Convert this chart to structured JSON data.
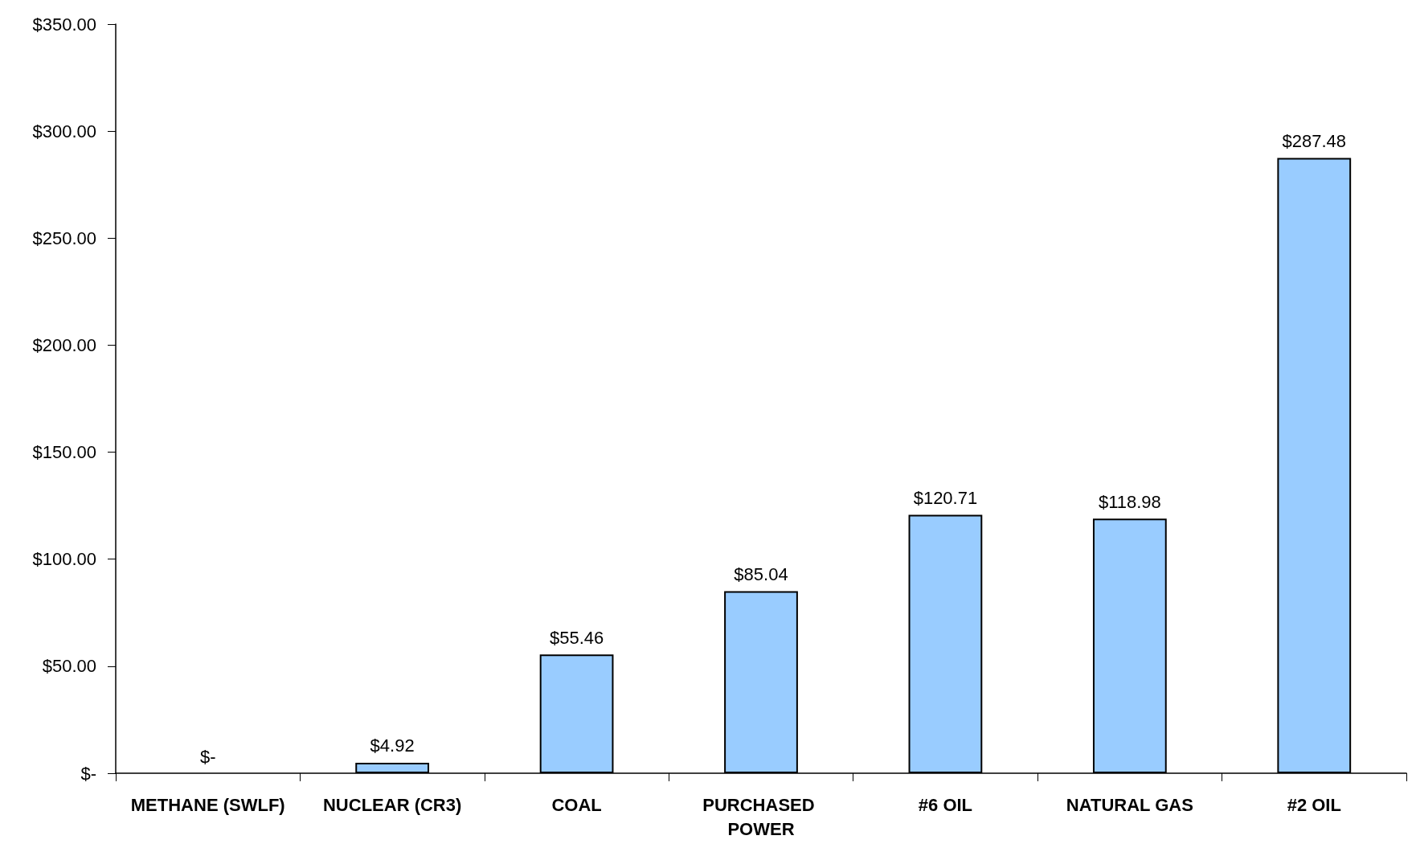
{
  "chart_data": {
    "type": "bar",
    "categories": [
      "METHANE (SWLF)",
      "NUCLEAR (CR3)",
      "COAL",
      "PURCHASED POWER",
      "#6 OIL",
      "NATURAL GAS",
      "#2 OIL"
    ],
    "values": [
      0,
      4.92,
      55.46,
      85.04,
      120.71,
      118.98,
      287.48
    ],
    "value_labels": [
      "$-",
      "$4.92",
      "$55.46",
      "$85.04",
      "$120.71",
      "$118.98",
      "$287.48"
    ],
    "color": "#99ccff",
    "ylim": [
      0,
      350
    ],
    "yticks": [
      {
        "value": 0,
        "label": "$-"
      },
      {
        "value": 50,
        "label": "$50.00"
      },
      {
        "value": 100,
        "label": "$100.00"
      },
      {
        "value": 150,
        "label": "$150.00"
      },
      {
        "value": 200,
        "label": "$200.00"
      },
      {
        "value": 250,
        "label": "$250.00"
      },
      {
        "value": 300,
        "label": "$300.00"
      },
      {
        "value": 350,
        "label": "$350.00"
      }
    ],
    "grid": false
  }
}
